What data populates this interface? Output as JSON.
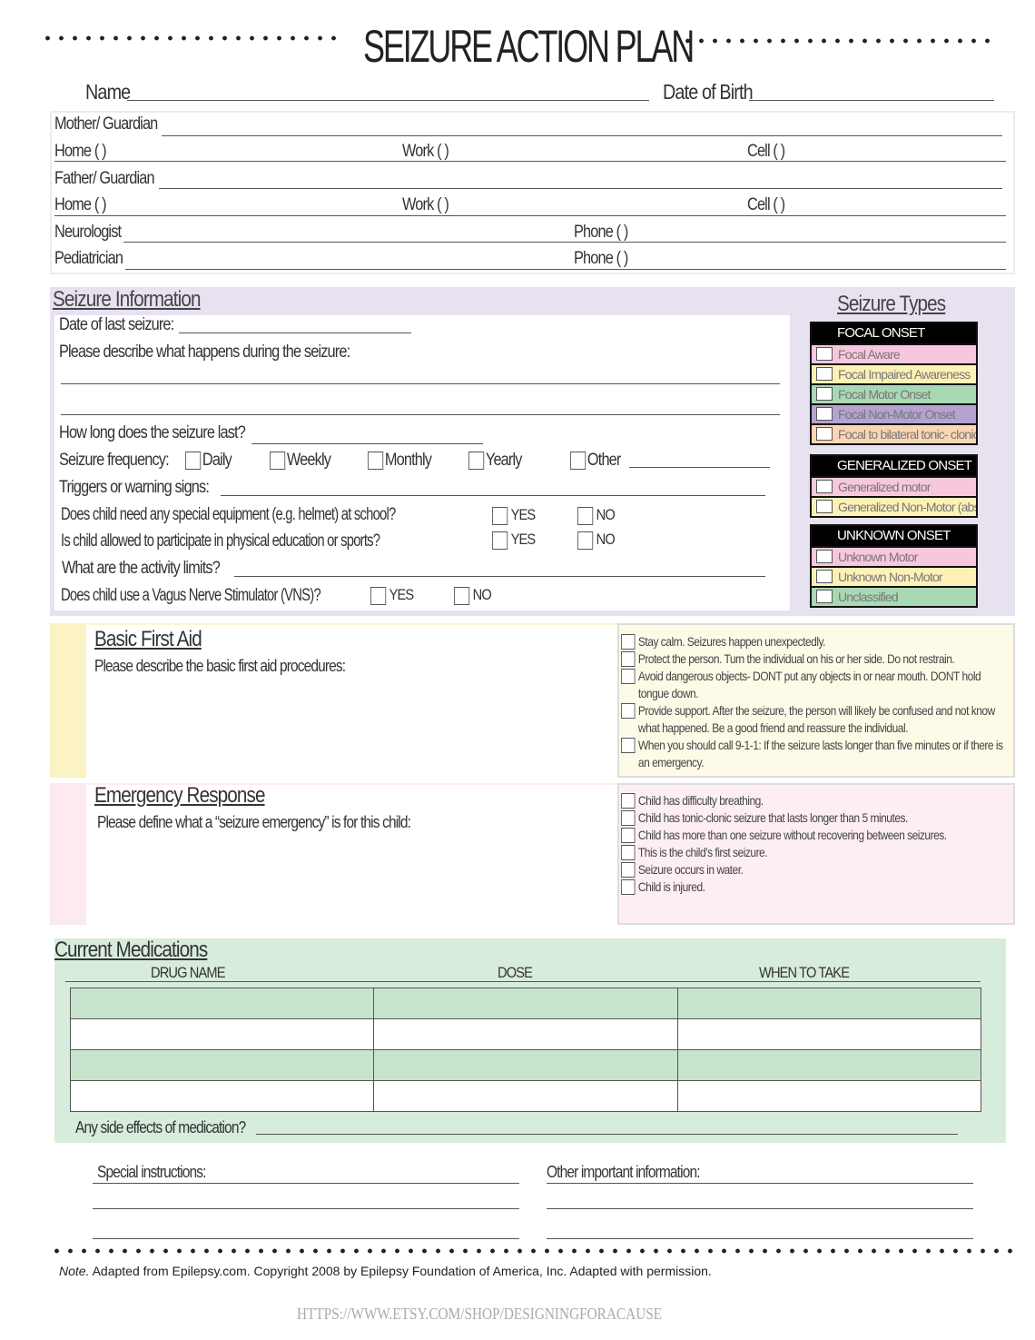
{
  "title": "SEIZURE ACTION PLAN",
  "contacts": {
    "name": "Name",
    "dob": "Date of Birth",
    "mother": "Mother/ Guardian",
    "father": "Father/ Guardian",
    "home": "Home (     )",
    "work": "Work (     )",
    "cell": "Cell (     )",
    "neurologist": "Neurologist",
    "pediatrician": "Pediatrician",
    "phone": "Phone (     )"
  },
  "seizure_info": {
    "heading": "Seizure Information",
    "last": "Date of last seizure:",
    "describe": "Please describe what happens during the seizure:",
    "how_long": "How long does the seizure last?",
    "frequency": "Seizure frequency:",
    "freq_options": [
      "Daily",
      "Weekly",
      "Monthly",
      "Yearly",
      "Other"
    ],
    "triggers": "Triggers or warning signs:",
    "equipment": "Does child need any special equipment (e.g. helmet) at school?",
    "pe": "Is child allowed to participate in physical education or sports?",
    "limits": "What are the activity limits?",
    "vns": "Does child use a Vagus Nerve Stimulator (VNS)?",
    "yes": "YES",
    "no": "NO"
  },
  "seizure_types": {
    "heading": "Seizure Types",
    "groups": [
      {
        "title": "FOCAL ONSET",
        "items": [
          {
            "label": "Focal Aware",
            "color": "#f7c7de"
          },
          {
            "label": "Focal Impaired Awareness",
            "color": "#fdf1b6"
          },
          {
            "label": "Focal Motor Onset",
            "color": "#a9d9b3"
          },
          {
            "label": "Focal Non-Motor Onset",
            "color": "#b3a3d0"
          },
          {
            "label": "Focal to bilateral tonic- clonic",
            "color": "#fcd6b3"
          }
        ]
      },
      {
        "title": "GENERALIZED ONSET",
        "items": [
          {
            "label": "Generalized motor",
            "color": "#f7c7de"
          },
          {
            "label": "Generalized Non-Motor (absence)",
            "color": "#fdf1b6"
          }
        ]
      },
      {
        "title": "UNKNOWN ONSET",
        "items": [
          {
            "label": "Unknown Motor",
            "color": "#f7c7de"
          },
          {
            "label": "Unknown Non-Motor",
            "color": "#fdf1b6"
          },
          {
            "label": "Unclassified",
            "color": "#a9d9b3"
          }
        ]
      }
    ]
  },
  "first_aid": {
    "heading": "Basic First Aid",
    "prompt": "Please describe the basic first aid procedures:",
    "items": [
      "Stay calm. Seizures happen unexpectedly.",
      "Protect the person. Turn the individual on his or her side. Do not restrain.",
      "Avoid dangerous objects- DONT put any objects in or near mouth. DONT hold tongue down.",
      "Provide support. After the seizure, the person will likely be confused and not know what happened. Be a good friend and reassure the individual.",
      "When you should call 9-1-1: If the seizure lasts longer than five minutes or if there is an emergency."
    ]
  },
  "emergency": {
    "heading": "Emergency Response",
    "prompt": "Please define what a “seizure emergency” is for this child:",
    "items": [
      "Child has difficulty breathing.",
      "Child has tonic-clonic seizure that lasts longer than 5 minutes.",
      "Child has more than one seizure without recovering between seizures.",
      "This is the child’s first seizure.",
      "Seizure occurs in water.",
      "Child is injured."
    ]
  },
  "medications": {
    "heading": "Current Medications",
    "columns": [
      "DRUG NAME",
      "DOSE",
      "WHEN TO TAKE"
    ],
    "side_effects": "Any side effects of medication?"
  },
  "special": "Special instructions:",
  "other": "Other important information:",
  "note_label": "Note.",
  "note": " Adapted from Epilepsy.com. Copyright 2008 by Epilepsy Foundation of America, Inc. Adapted with permission.",
  "url": "HTTPS://WWW.ETSY.COM/SHOP/DESIGNINGFORACAUSE"
}
